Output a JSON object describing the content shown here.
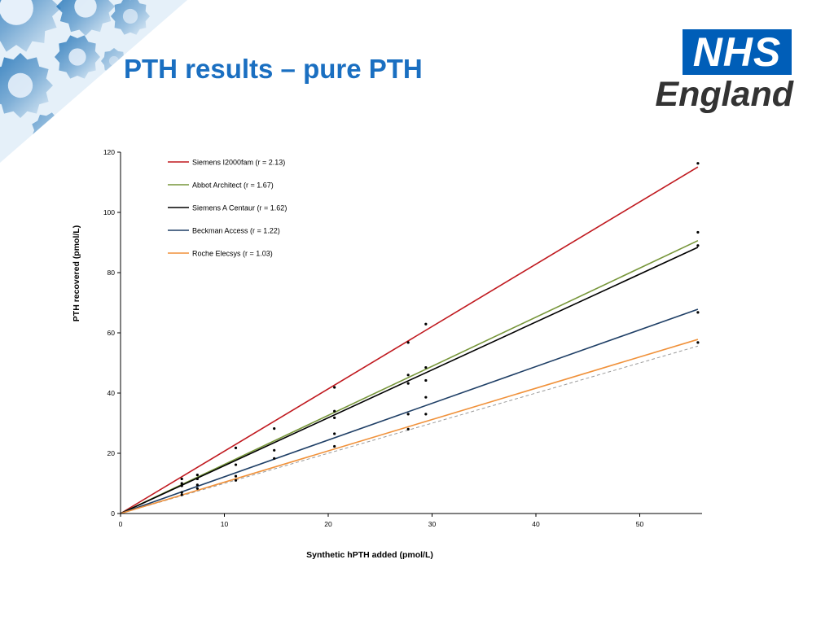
{
  "slide": {
    "title": "PTH results – pure PTH"
  },
  "logo": {
    "mark": "NHS",
    "region": "England",
    "colors": {
      "box": "#005eb8",
      "text": "#333333"
    }
  },
  "decoration": {
    "icon": "gears-icon",
    "color": "#1b6fb5"
  },
  "chart_data": {
    "type": "scatter",
    "xlabel": "Synthetic hPTH added (pmol/L)",
    "ylabel": "PTH recovered (pmol/L)",
    "xlim": [
      0,
      56
    ],
    "ylim": [
      0,
      120
    ],
    "xticks": [
      0,
      10,
      20,
      30,
      40,
      50
    ],
    "yticks": [
      0,
      20,
      40,
      60,
      80,
      100,
      120
    ],
    "grid": false,
    "legend_position": "top-left",
    "series": [
      {
        "name": "Siemens I2000fam (r = 2.13)",
        "color": "#c0191f",
        "slope": 2.07,
        "points": [
          [
            5.9,
            11.5
          ],
          [
            11.1,
            21.8
          ],
          [
            14.8,
            28.2
          ],
          [
            20.6,
            41.9
          ],
          [
            27.7,
            56.8
          ],
          [
            29.4,
            62.9
          ],
          [
            55.6,
            116.3
          ]
        ]
      },
      {
        "name": "Abbot Architect (r = 1.67)",
        "color": "#77963a",
        "slope": 1.63,
        "points": [
          [
            5.9,
            10.0
          ],
          [
            7.4,
            12.8
          ],
          [
            20.6,
            34.0
          ],
          [
            27.7,
            46.0
          ],
          [
            29.4,
            48.5
          ],
          [
            55.6,
            93.4
          ]
        ]
      },
      {
        "name": "Siemens A Centaur (r = 1.62)",
        "color": "#000000",
        "slope": 1.59,
        "points": [
          [
            5.9,
            9.2
          ],
          [
            7.4,
            11.5
          ],
          [
            20.6,
            31.8
          ],
          [
            27.7,
            43.2
          ],
          [
            29.4,
            44.2
          ],
          [
            55.6,
            89.0
          ]
        ]
      },
      {
        "name": "Beckman Access (r = 1.22)",
        "color": "#1f3f66",
        "slope": 1.22,
        "points": [
          [
            5.9,
            7.0
          ],
          [
            7.4,
            9.5
          ],
          [
            11.1,
            16.2
          ],
          [
            14.8,
            21.0
          ],
          [
            20.6,
            26.5
          ],
          [
            27.7,
            33.0
          ],
          [
            29.4,
            38.6
          ],
          [
            55.6,
            66.8
          ]
        ]
      },
      {
        "name": "Roche Elecsys (r = 1.03)",
        "color": "#f0913a",
        "slope": 1.04,
        "points": [
          [
            5.9,
            6.2
          ],
          [
            7.4,
            8.3
          ],
          [
            11.1,
            11.0
          ],
          [
            11.1,
            12.4
          ],
          [
            14.8,
            18.3
          ],
          [
            20.6,
            22.3
          ],
          [
            27.7,
            28.0
          ],
          [
            29.4,
            33.0
          ],
          [
            55.6,
            56.8
          ]
        ]
      }
    ],
    "reference_line": {
      "slope": 1.0,
      "style": "dashed",
      "color": "#9a9a9a"
    }
  }
}
